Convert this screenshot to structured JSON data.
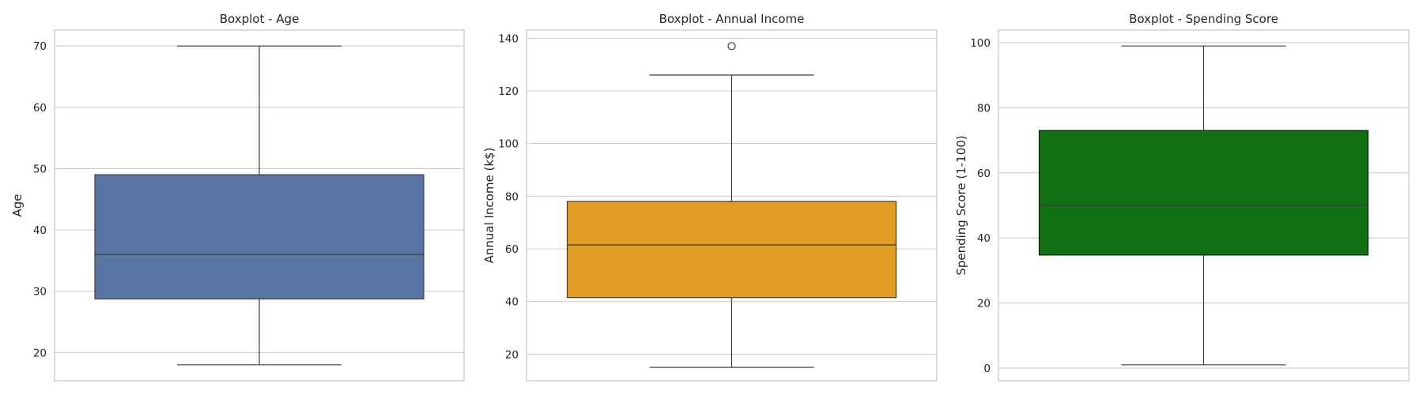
{
  "chart_data": [
    {
      "type": "box",
      "title": "Boxplot - Age",
      "xlabel": "",
      "ylabel": "Age",
      "ylim": [
        15.4,
        72.6
      ],
      "yticks": [
        20,
        30,
        40,
        50,
        60,
        70
      ],
      "stats": {
        "whisker_low": 18,
        "q1": 28.75,
        "median": 36,
        "q3": 49,
        "whisker_high": 70
      },
      "outliers": [],
      "color": "#5975a4",
      "grid": true
    },
    {
      "type": "box",
      "title": "Boxplot - Annual Income",
      "xlabel": "",
      "ylabel": "Annual Income (k$)",
      "ylim": [
        9.9,
        143.1
      ],
      "yticks": [
        20,
        40,
        60,
        80,
        100,
        120,
        140
      ],
      "stats": {
        "whisker_low": 15,
        "q1": 41.5,
        "median": 61.5,
        "q3": 78,
        "whisker_high": 126
      },
      "outliers": [
        137
      ],
      "color": "#e09c23",
      "grid": true
    },
    {
      "type": "box",
      "title": "Boxplot - Spending Score",
      "xlabel": "",
      "ylabel": "Spending Score (1-100)",
      "ylim": [
        -3.9,
        103.9
      ],
      "yticks": [
        0,
        20,
        40,
        60,
        80,
        100
      ],
      "stats": {
        "whisker_low": 1,
        "q1": 34.75,
        "median": 50,
        "q3": 73,
        "whisker_high": 99
      },
      "outliers": [],
      "color": "#117214",
      "grid": true
    }
  ]
}
